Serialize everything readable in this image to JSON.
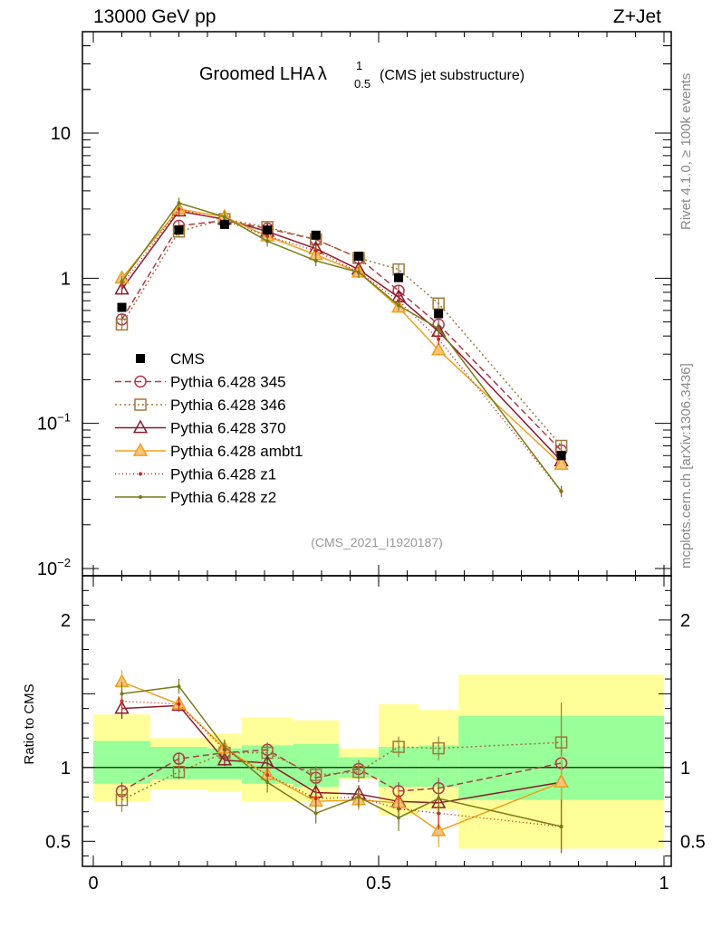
{
  "chart_data": {
    "type": "line",
    "header_left": "13000 GeV pp",
    "header_right": "Z+Jet",
    "title_main": "Groomed LHA",
    "title_lambda": "λ",
    "title_sup": "1",
    "title_sub": "0.5",
    "title_suffix": "(CMS jet substructure)",
    "right_label_top": "Rivet 4.1.0, ≥ 100k events",
    "right_label_bottom": "mcplots.cern.ch [arXiv:1306.3436]",
    "analysis_id": "(CMS_2021_I1920187)",
    "ratio_ylabel": "Ratio to CMS",
    "xlim": [
      0,
      1
    ],
    "ylim_main": [
      0.01,
      50
    ],
    "ylim_ratio": [
      0.33,
      2.3
    ],
    "x_ticks": [
      0,
      0.5,
      1
    ],
    "x_tick_labels": [
      "0",
      "0.5",
      "1"
    ],
    "main_y_ticks": [
      {
        "value": 10,
        "base": "10",
        "exp": ""
      },
      {
        "value": 1,
        "base": "1",
        "exp": ""
      },
      {
        "value": 0.1,
        "base": "10",
        "exp": "−1"
      },
      {
        "value": 0.01,
        "base": "10",
        "exp": "−2"
      }
    ],
    "ratio_y_ticks": [
      {
        "value": 2,
        "label": "2"
      },
      {
        "value": 1,
        "label": "1"
      },
      {
        "value": 0.5,
        "label": "0.5"
      }
    ],
    "bins": [
      {
        "lo": 0.0,
        "hi": 0.1,
        "x": 0.05
      },
      {
        "lo": 0.1,
        "hi": 0.2,
        "x": 0.15
      },
      {
        "lo": 0.2,
        "hi": 0.26,
        "x": 0.23
      },
      {
        "lo": 0.26,
        "hi": 0.35,
        "x": 0.305
      },
      {
        "lo": 0.35,
        "hi": 0.43,
        "x": 0.39
      },
      {
        "lo": 0.43,
        "hi": 0.5,
        "x": 0.465
      },
      {
        "lo": 0.5,
        "hi": 0.57,
        "x": 0.535
      },
      {
        "lo": 0.57,
        "hi": 0.64,
        "x": 0.605
      },
      {
        "lo": 0.64,
        "hi": 1.0,
        "x": 0.82
      }
    ],
    "data_series": {
      "name": "CMS",
      "x": [
        0.05,
        0.15,
        0.23,
        0.305,
        0.39,
        0.465,
        0.535,
        0.605,
        0.82
      ],
      "y": [
        0.63,
        2.15,
        2.35,
        2.15,
        1.98,
        1.42,
        1.01,
        0.57,
        0.06
      ]
    },
    "bands": {
      "green_lo": [
        0.89,
        0.92,
        0.92,
        0.89,
        0.87,
        0.93,
        0.87,
        0.87,
        0.78
      ],
      "green_hi": [
        1.18,
        1.14,
        1.13,
        1.15,
        1.16,
        1.07,
        1.14,
        1.15,
        1.35
      ],
      "yellow_lo": [
        0.77,
        0.85,
        0.84,
        0.77,
        0.77,
        0.92,
        0.68,
        0.71,
        0.45
      ],
      "yellow_hi": [
        1.36,
        1.2,
        1.23,
        1.34,
        1.32,
        1.13,
        1.43,
        1.39,
        1.63
      ]
    },
    "series": [
      {
        "name": "Pythia 6.428 345",
        "color": "#b03a48",
        "dash": "7,4",
        "marker": "circle-open",
        "x": [
          0.05,
          0.15,
          0.23,
          0.305,
          0.39,
          0.465,
          0.535,
          0.605,
          0.82
        ],
        "y": [
          0.52,
          2.3,
          2.5,
          2.2,
          1.85,
          1.38,
          0.82,
          0.48,
          0.065
        ],
        "ratio": [
          0.84,
          1.06,
          1.1,
          1.12,
          0.93,
          0.99,
          0.84,
          0.86,
          1.03
        ],
        "ratio_err": [
          0.06,
          0.04,
          0.04,
          0.05,
          0.05,
          0.06,
          0.06,
          0.07,
          0.15
        ]
      },
      {
        "name": "Pythia 6.428 346",
        "color": "#a07838",
        "dash": "2,3",
        "marker": "square-open",
        "x": [
          0.05,
          0.15,
          0.23,
          0.305,
          0.39,
          0.465,
          0.535,
          0.605,
          0.82
        ],
        "y": [
          0.48,
          2.1,
          2.55,
          2.25,
          1.85,
          1.38,
          1.15,
          0.67,
          0.07
        ],
        "ratio": [
          0.78,
          0.97,
          1.1,
          1.1,
          0.95,
          0.97,
          1.14,
          1.13,
          1.17
        ],
        "ratio_err": [
          0.08,
          0.05,
          0.05,
          0.06,
          0.06,
          0.07,
          0.07,
          0.08,
          0.27
        ]
      },
      {
        "name": "Pythia 6.428 370",
        "color": "#8b1a2b",
        "dash": "",
        "marker": "triangle-open",
        "x": [
          0.05,
          0.15,
          0.23,
          0.305,
          0.39,
          0.465,
          0.535,
          0.605,
          0.82
        ],
        "y": [
          0.84,
          2.9,
          2.55,
          2.1,
          1.6,
          1.15,
          0.74,
          0.43,
          0.055
        ],
        "ratio": [
          1.4,
          1.42,
          1.05,
          1.03,
          0.83,
          0.82,
          0.77,
          0.76,
          0.9
        ],
        "ratio_err": [
          0.07,
          0.04,
          0.04,
          0.05,
          0.05,
          0.06,
          0.07,
          0.07,
          0.14
        ]
      },
      {
        "name": "Pythia 6.428 ambt1",
        "color": "#f0a020",
        "dash": "",
        "marker": "triangle-orange",
        "x": [
          0.05,
          0.15,
          0.23,
          0.305,
          0.39,
          0.465,
          0.535,
          0.605,
          0.82
        ],
        "y": [
          1.0,
          3.0,
          2.65,
          1.95,
          1.45,
          1.1,
          0.63,
          0.32,
          0.052
        ],
        "ratio": [
          1.58,
          1.43,
          1.13,
          0.95,
          0.77,
          0.78,
          0.76,
          0.57,
          0.9
        ],
        "ratio_err": [
          0.08,
          0.05,
          0.05,
          0.06,
          0.06,
          0.07,
          0.09,
          0.11,
          0.18
        ]
      },
      {
        "name": "Pythia 6.428 z1",
        "color": "#d02818",
        "dash": "1,3",
        "marker": "dot",
        "x": [
          0.05,
          0.15,
          0.23,
          0.305,
          0.39,
          0.465,
          0.535,
          0.605,
          0.82
        ],
        "y": [
          0.9,
          3.0,
          2.5,
          1.95,
          1.55,
          1.1,
          0.7,
          0.38,
          0.034
        ],
        "ratio": [
          1.45,
          1.43,
          1.12,
          0.95,
          0.79,
          0.8,
          0.72,
          0.69,
          0.6
        ],
        "ratio_err": [
          0.08,
          0.05,
          0.05,
          0.06,
          0.06,
          0.07,
          0.09,
          0.11,
          0.18
        ]
      },
      {
        "name": "Pythia 6.428 z2",
        "color": "#7a7a18",
        "dash": "",
        "marker": "dot",
        "x": [
          0.05,
          0.15,
          0.23,
          0.305,
          0.39,
          0.465,
          0.535,
          0.605,
          0.82
        ],
        "y": [
          0.95,
          3.3,
          2.65,
          1.8,
          1.32,
          1.1,
          0.65,
          0.45,
          0.034
        ],
        "ratio": [
          1.5,
          1.55,
          1.14,
          0.9,
          0.69,
          0.8,
          0.66,
          0.79,
          0.6
        ],
        "ratio_err": [
          0.08,
          0.05,
          0.05,
          0.07,
          0.07,
          0.07,
          0.09,
          0.1,
          0.18
        ]
      }
    ]
  }
}
